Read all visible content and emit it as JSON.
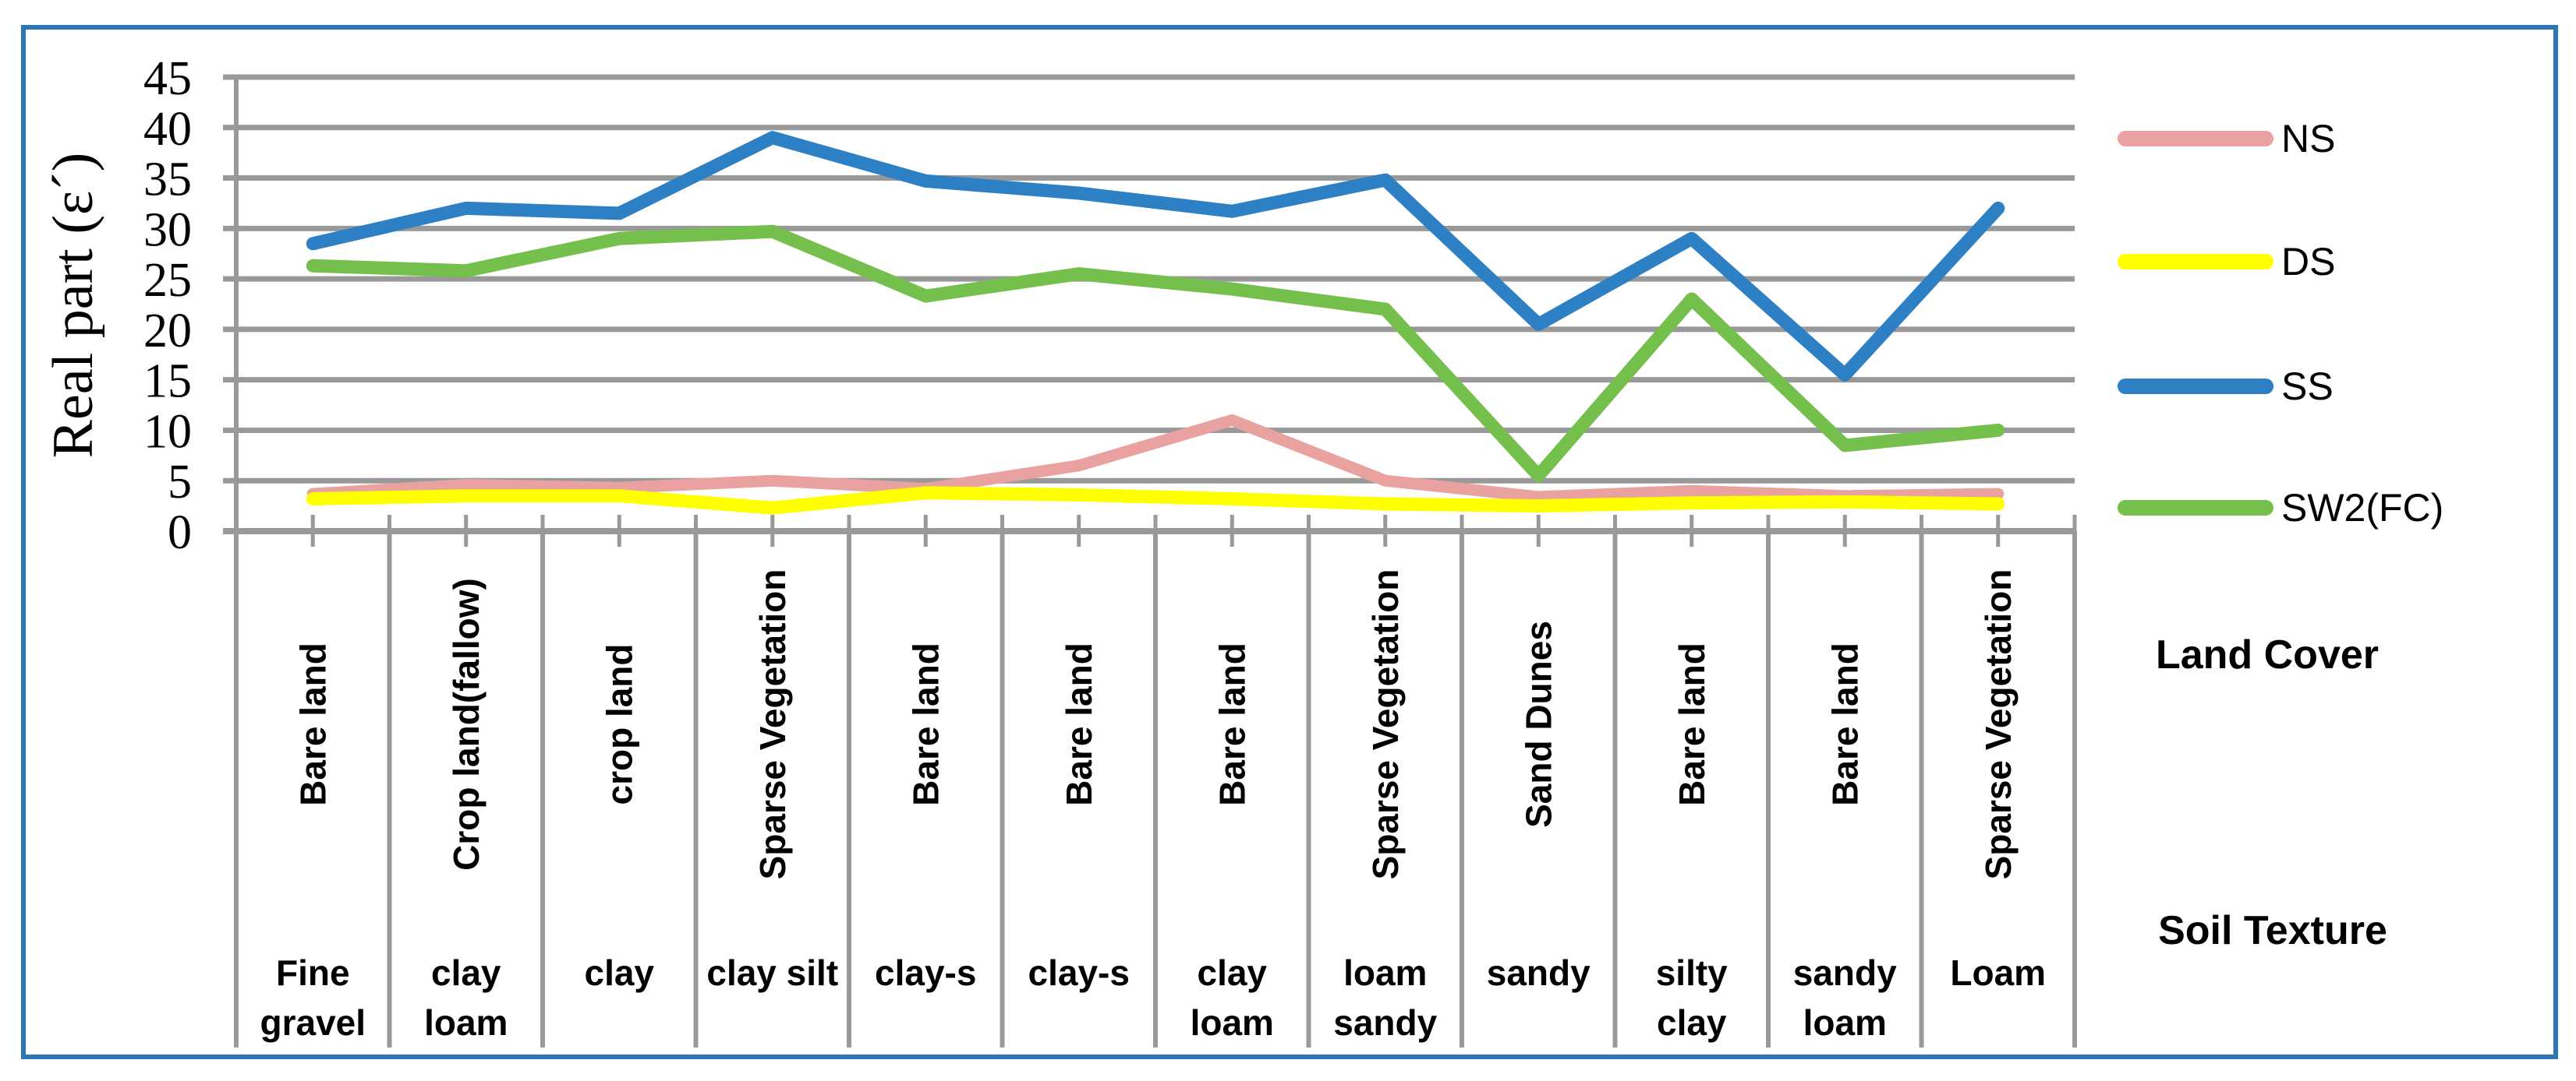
{
  "chart_data": {
    "type": "line",
    "title": "",
    "ylabel": "Real part (ε´)",
    "xlabel": "",
    "ylim": [
      0,
      45
    ],
    "ytick_step": 5,
    "ytick_labels": [
      "0",
      "5",
      "10",
      "15",
      "20",
      "25",
      "30",
      "35",
      "40",
      "45"
    ],
    "grid": true,
    "legend_position": "right",
    "x_axis_rows": {
      "land_cover_title": "Land Cover",
      "soil_texture_title": "Soil Texture"
    },
    "categories": [
      {
        "land_cover": "Bare land",
        "soil_texture": "Fine gravel",
        "soil_texture_lines": [
          "Fine",
          "gravel"
        ]
      },
      {
        "land_cover": "Crop land(fallow)",
        "soil_texture": "clay loam",
        "soil_texture_lines": [
          "clay",
          "loam"
        ]
      },
      {
        "land_cover": "crop land",
        "soil_texture": "clay",
        "soil_texture_lines": [
          "clay"
        ]
      },
      {
        "land_cover": "Sparse Vegetation",
        "soil_texture": "clay silt",
        "soil_texture_lines": [
          "clay silt"
        ]
      },
      {
        "land_cover": "Bare land",
        "soil_texture": "clay-s",
        "soil_texture_lines": [
          "clay-s"
        ]
      },
      {
        "land_cover": "Bare land",
        "soil_texture": "clay-s",
        "soil_texture_lines": [
          "clay-s"
        ]
      },
      {
        "land_cover": "Bare land",
        "soil_texture": "clay loam",
        "soil_texture_lines": [
          "clay",
          "loam"
        ]
      },
      {
        "land_cover": "Sparse Vegetation",
        "soil_texture": "loam sandy",
        "soil_texture_lines": [
          "loam",
          "sandy"
        ]
      },
      {
        "land_cover": "Sand Dunes",
        "soil_texture": "sandy",
        "soil_texture_lines": [
          "sandy"
        ]
      },
      {
        "land_cover": "Bare land",
        "soil_texture": "silty clay",
        "soil_texture_lines": [
          "silty",
          "clay"
        ]
      },
      {
        "land_cover": "Bare land",
        "soil_texture": "sandy loam",
        "soil_texture_lines": [
          "sandy",
          "loam"
        ]
      },
      {
        "land_cover": "Sparse Vegetation",
        "soil_texture": "Loam",
        "soil_texture_lines": [
          "Loam"
        ]
      }
    ],
    "series": [
      {
        "name": "NS",
        "color": "#E9A29F",
        "values": [
          3.7,
          4.6,
          4.3,
          5.0,
          4.2,
          6.5,
          11.0,
          5.0,
          3.4,
          4.0,
          3.5,
          3.7
        ]
      },
      {
        "name": "DS",
        "color": "#FFFF00",
        "values": [
          3.2,
          3.5,
          3.5,
          2.3,
          3.8,
          3.6,
          3.2,
          2.7,
          2.5,
          2.8,
          2.9,
          2.7
        ]
      },
      {
        "name": "SS",
        "color": "#2E80C4",
        "values": [
          28.5,
          32.0,
          31.5,
          39.0,
          34.7,
          33.5,
          31.7,
          34.8,
          20.5,
          29.0,
          15.5,
          32.0
        ]
      },
      {
        "name": "SW2(FC)",
        "color": "#75BF4C",
        "values": [
          26.3,
          25.8,
          29.0,
          29.7,
          23.3,
          25.5,
          24.0,
          22.0,
          5.5,
          23.0,
          8.5,
          10.0
        ]
      }
    ],
    "colors": {
      "border": "#2E76B7",
      "gridline": "#999999",
      "background": "#FFFFFF",
      "text": "#000000"
    }
  }
}
